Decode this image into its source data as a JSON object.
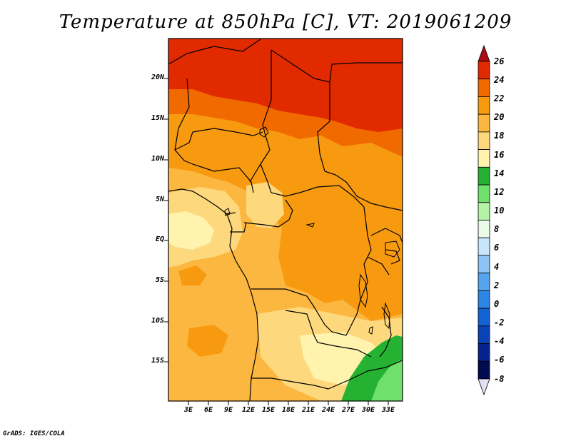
{
  "title": "Temperature at 850hPa [C], VT: 2019061209",
  "credit": "GrADS: IGES/COLA",
  "lat_labels": [
    "20N",
    "15N",
    "10N",
    "5N",
    "EQ",
    "5S",
    "10S",
    "15S"
  ],
  "lon_labels": [
    "3E",
    "6E",
    "9E",
    "12E",
    "15E",
    "18E",
    "21E",
    "24E",
    "27E",
    "30E",
    "33E"
  ],
  "colorbar": {
    "labels": [
      "26",
      "24",
      "22",
      "20",
      "18",
      "16",
      "14",
      "12",
      "10",
      "8",
      "6",
      "4",
      "2",
      "0",
      "-2",
      "-4",
      "-6",
      "-8"
    ],
    "colors": [
      "#a50f15",
      "#e12a00",
      "#f06a00",
      "#f89a10",
      "#fbb740",
      "#fdd87c",
      "#fff3ae",
      "#25b233",
      "#6fe06b",
      "#b4f2a6",
      "#e9fbe6",
      "#c7e5fb",
      "#8ec3f5",
      "#56a3ee",
      "#2b86e6",
      "#1463d5",
      "#0a43b5",
      "#04238e",
      "#020a50",
      "#e3e0f5"
    ]
  },
  "map_colors": {
    "t25": "#e12a00",
    "t23": "#f06a00",
    "t21": "#f89a10",
    "t19": "#fbb740",
    "t17": "#fdd87c",
    "t15": "#fff3ae",
    "t13": "#25b233",
    "t11": "#6fe06b"
  }
}
